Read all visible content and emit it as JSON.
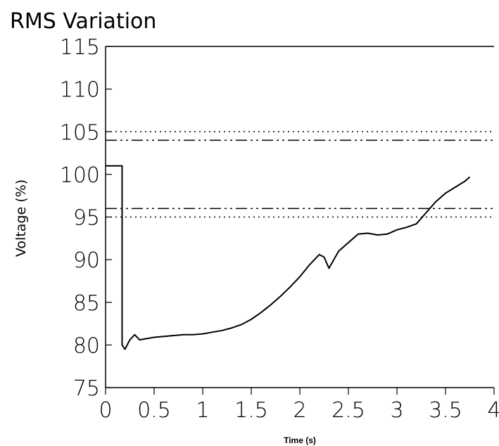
{
  "chart_data": {
    "type": "line",
    "title": "RMS Variation",
    "xlabel": "Time (s)",
    "ylabel": "Voltage (%)",
    "xlim": [
      0,
      4
    ],
    "ylim": [
      75,
      115
    ],
    "x_ticks": [
      "0",
      "0.5",
      "1",
      "1.5",
      "2",
      "2.5",
      "3",
      "3.5",
      "4"
    ],
    "y_ticks": [
      "75",
      "80",
      "85",
      "90",
      "95",
      "100",
      "105",
      "110",
      "115"
    ],
    "grid": false,
    "colors": {
      "series": "#000000",
      "reference": "#000000",
      "axis": "#000000"
    },
    "reference_lines": [
      {
        "y": 105,
        "style": "dotted"
      },
      {
        "y": 104,
        "style": "dash-dot"
      },
      {
        "y": 96,
        "style": "dash-dot"
      },
      {
        "y": 95,
        "style": "dotted"
      }
    ],
    "series": [
      {
        "x": [
          0,
          0.17,
          0.17,
          0.2,
          0.25,
          0.3,
          0.35,
          0.4,
          0.5,
          0.6,
          0.7,
          0.8,
          0.9,
          1.0,
          1.1,
          1.2,
          1.3,
          1.4,
          1.5,
          1.6,
          1.7,
          1.8,
          1.9,
          2.0,
          2.1,
          2.2,
          2.25,
          2.3,
          2.4,
          2.5,
          2.6,
          2.7,
          2.8,
          2.9,
          3.0,
          3.1,
          3.2,
          3.3,
          3.4,
          3.5,
          3.6,
          3.7,
          3.75
        ],
        "y": [
          101,
          101,
          80,
          79.5,
          80.6,
          81.2,
          80.6,
          80.7,
          80.9,
          81.0,
          81.1,
          81.2,
          81.2,
          81.3,
          81.5,
          81.7,
          82.0,
          82.4,
          83.0,
          83.8,
          84.7,
          85.7,
          86.8,
          88.0,
          89.4,
          90.6,
          90.3,
          89.0,
          91.0,
          92.0,
          93.0,
          93.1,
          92.9,
          93.0,
          93.5,
          93.8,
          94.2,
          95.5,
          96.8,
          97.8,
          98.5,
          99.2,
          99.7
        ]
      }
    ]
  }
}
